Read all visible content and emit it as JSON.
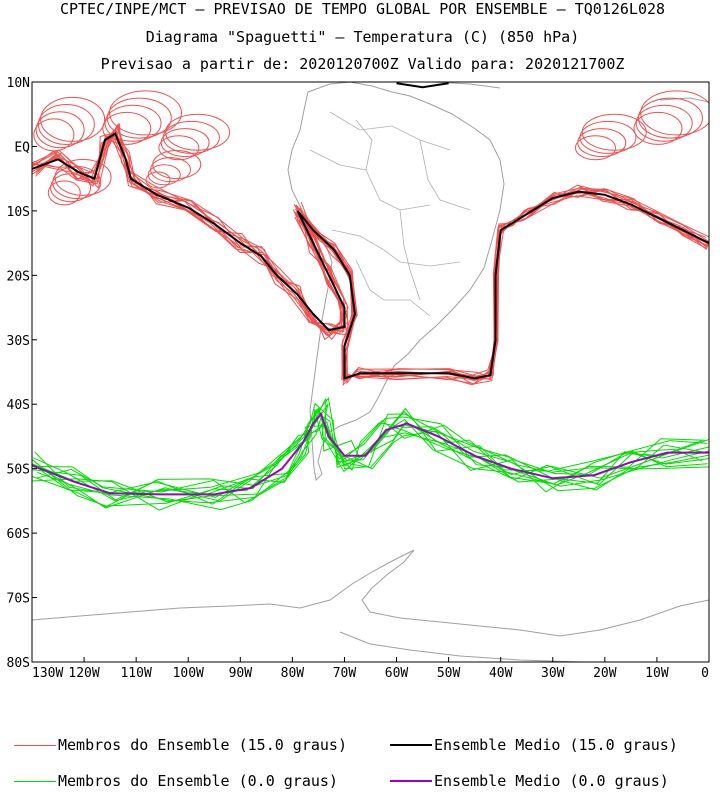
{
  "header": {
    "line1": "CPTEC/INPE/MCT – PREVISAO DE TEMPO GLOBAL POR ENSEMBLE – TQ0126L028",
    "line2": "Diagrama \"Spaguetti\" – Temperatura (C) (850 hPa)",
    "line3": "Previsao a partir de: 2020120700Z  Valido para: 2020121700Z"
  },
  "axes": {
    "lat_ticks": [
      "10N",
      "EQ",
      "10S",
      "20S",
      "30S",
      "40S",
      "50S",
      "60S",
      "70S",
      "80S"
    ],
    "lon_ticks": [
      "130W",
      "120W",
      "110W",
      "100W",
      "90W",
      "80W",
      "70W",
      "60W",
      "50W",
      "40W",
      "30W",
      "20W",
      "10W",
      "0"
    ],
    "lat_range": [
      -80,
      10
    ],
    "lon_range": [
      -130,
      0
    ]
  },
  "legend": [
    {
      "label": "Membros do Ensemble (15.0 graus)",
      "color": "#f05050",
      "width": 1
    },
    {
      "label": "Ensemble Medio (15.0 graus)",
      "color": "#000000",
      "width": 2
    },
    {
      "label": "Membros do Ensemble (0.0 graus)",
      "color": "#00dd00",
      "width": 1
    },
    {
      "label": "Ensemble Medio (0.0 graus)",
      "color": "#a000c8",
      "width": 2
    }
  ],
  "colors": {
    "coast": "#a0a0a0",
    "member_15": "#f05050",
    "mean_15": "#000000",
    "member_0": "#00dd00",
    "mean_0": "#a000c8"
  }
}
